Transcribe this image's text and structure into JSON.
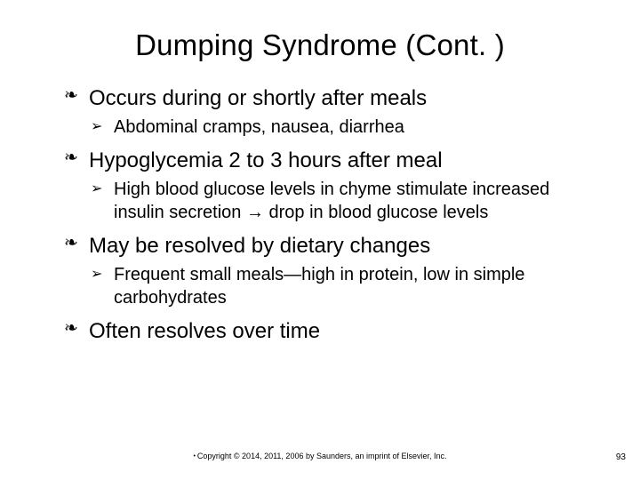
{
  "title": "Dumping Syndrome (Cont. )",
  "items": [
    {
      "text": "Occurs during or shortly after meals",
      "sub": "Abdominal cramps, nausea, diarrhea"
    },
    {
      "text": "Hypoglycemia 2 to 3 hours after meal",
      "sub": "High blood glucose levels in chyme stimulate increased insulin secretion → drop in blood glucose levels"
    },
    {
      "text": "May be resolved by dietary changes",
      "sub": "Frequent small meals—high in protein, low in simple carbohydrates"
    },
    {
      "text": "Often resolves over time",
      "sub": null
    }
  ],
  "footer": "Copyright © 2014, 2011, 2006 by Saunders, an imprint of Elsevier, Inc.",
  "page_number": "93",
  "style": {
    "background_color": "#ffffff",
    "text_color": "#000000",
    "title_fontsize": 33,
    "level1_fontsize": 24,
    "level2_fontsize": 20,
    "footer_fontsize": 9,
    "page_fontsize": 10,
    "level1_bullet": "❧",
    "level2_bullet": "➢"
  }
}
